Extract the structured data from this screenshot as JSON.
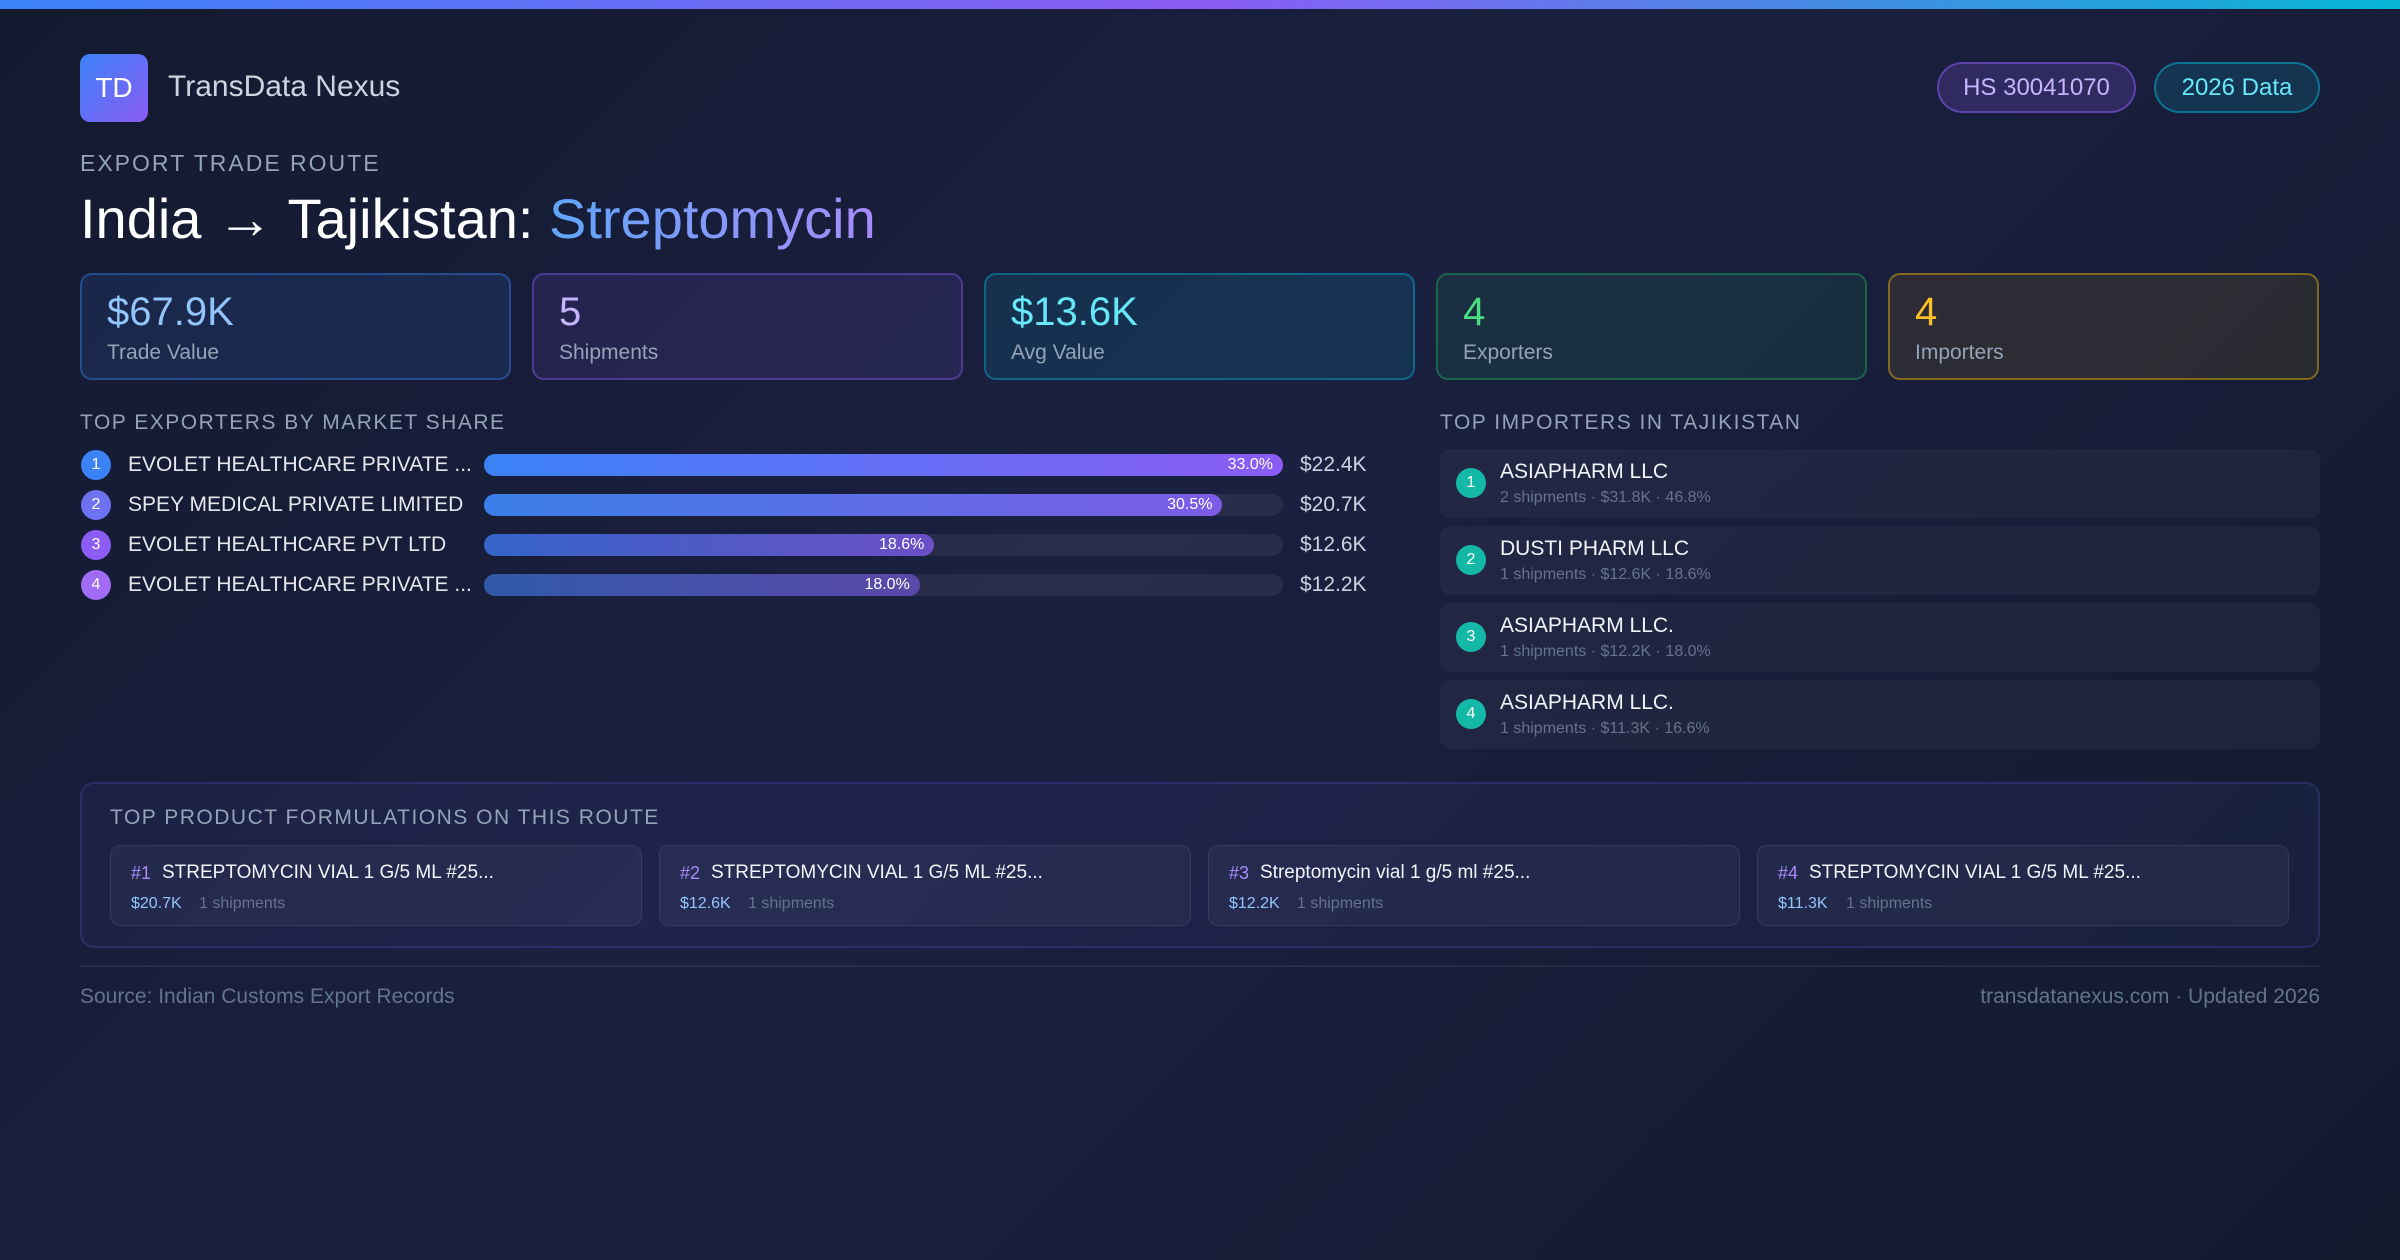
{
  "header": {
    "logo": "TD",
    "brand": "TransData Nexus",
    "badges": [
      "HS 30041070",
      "2026 Data"
    ]
  },
  "route": {
    "eyebrow": "EXPORT TRADE ROUTE",
    "title": "India → Tajikistan:",
    "product": "Streptomycin"
  },
  "stats": [
    {
      "value": "$67.9K",
      "label": "Trade Value"
    },
    {
      "value": "5",
      "label": "Shipments"
    },
    {
      "value": "$13.6K",
      "label": "Avg Value"
    },
    {
      "value": "4",
      "label": "Exporters"
    },
    {
      "value": "4",
      "label": "Importers"
    }
  ],
  "exporters": {
    "title": "TOP EXPORTERS BY MARKET SHARE",
    "rows": [
      {
        "rank": "1",
        "name": "EVOLET HEALTHCARE PRIVATE ...",
        "share": 33.0,
        "share_label": "33.0%",
        "value": "$22.4K"
      },
      {
        "rank": "2",
        "name": "SPEY MEDICAL PRIVATE LIMITED",
        "share": 30.5,
        "share_label": "30.5%",
        "value": "$20.7K"
      },
      {
        "rank": "3",
        "name": "EVOLET HEALTHCARE PVT LTD",
        "share": 18.6,
        "share_label": "18.6%",
        "value": "$12.6K"
      },
      {
        "rank": "4",
        "name": "EVOLET HEALTHCARE PRIVATE ...",
        "share": 18.0,
        "share_label": "18.0%",
        "value": "$12.2K"
      }
    ]
  },
  "importers": {
    "title": "TOP IMPORTERS IN TAJIKISTAN",
    "rows": [
      {
        "rank": "1",
        "name": "ASIAPHARM LLC",
        "detail": "2 shipments · $31.8K · 46.8%"
      },
      {
        "rank": "2",
        "name": "DUSTI PHARM LLC",
        "detail": "1 shipments · $12.6K · 18.6%"
      },
      {
        "rank": "3",
        "name": "ASIAPHARM LLC.",
        "detail": "1 shipments · $12.2K · 18.0%"
      },
      {
        "rank": "4",
        "name": "ASIAPHARM LLC.",
        "detail": "1 shipments · $11.3K · 16.6%"
      }
    ]
  },
  "formulations": {
    "title": "TOP PRODUCT FORMULATIONS ON THIS ROUTE",
    "items": [
      {
        "rank": "#1",
        "name": "STREPTOMYCIN VIAL 1 G/5 ML #25...",
        "value": "$20.7K",
        "shipments": "1 shipments"
      },
      {
        "rank": "#2",
        "name": "STREPTOMYCIN VIAL 1 G/5 ML #25...",
        "value": "$12.6K",
        "shipments": "1 shipments"
      },
      {
        "rank": "#3",
        "name": "Streptomycin vial 1 g/5 ml #25...",
        "value": "$12.2K",
        "shipments": "1 shipments"
      },
      {
        "rank": "#4",
        "name": "STREPTOMYCIN VIAL 1 G/5 ML #25...",
        "value": "$11.3K",
        "shipments": "1 shipments"
      }
    ]
  },
  "footer": {
    "source": "Source: Indian Customs Export Records",
    "site": "transdatanexus.com · Updated 2026"
  }
}
